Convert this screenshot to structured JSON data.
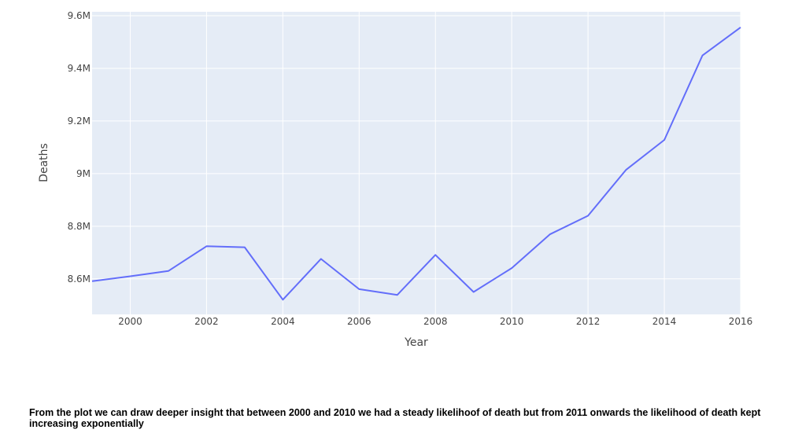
{
  "chart_data": {
    "type": "line",
    "title": "",
    "xlabel": "Year",
    "ylabel": "Deaths",
    "x": [
      1999,
      2000,
      2001,
      2002,
      2003,
      2004,
      2005,
      2006,
      2007,
      2008,
      2009,
      2010,
      2011,
      2012,
      2013,
      2014,
      2015,
      2016
    ],
    "series": [
      {
        "values": [
          8591,
          8610,
          8630,
          8724,
          8720,
          8521,
          8676,
          8561,
          8539,
          8691,
          8550,
          8641,
          8769,
          8840,
          9015,
          9128,
          9449,
          9556
        ],
        "color": "#636efa"
      }
    ],
    "xlim": [
      1999,
      2016
    ],
    "ylim": [
      8465,
      9615
    ],
    "x_ticks": [
      2000,
      2002,
      2004,
      2006,
      2008,
      2010,
      2012,
      2014,
      2016
    ],
    "y_ticks": [
      {
        "value": 8600,
        "label": "8.6M"
      },
      {
        "value": 8800,
        "label": "8.8M"
      },
      {
        "value": 9000,
        "label": "9M"
      },
      {
        "value": 9200,
        "label": "9.2M"
      },
      {
        "value": 9400,
        "label": "9.4M"
      },
      {
        "value": 9600,
        "label": "9.6M"
      }
    ],
    "grid": true,
    "plot_bg": "#e5ecf6",
    "grid_color": "#ffffff"
  },
  "insight": {
    "text": "From the plot we can draw deeper insight that between 2000 and 2010 we had a steady likelihoof of death but from 2011 onwards the likelihood of death kept increasing exponentially"
  }
}
